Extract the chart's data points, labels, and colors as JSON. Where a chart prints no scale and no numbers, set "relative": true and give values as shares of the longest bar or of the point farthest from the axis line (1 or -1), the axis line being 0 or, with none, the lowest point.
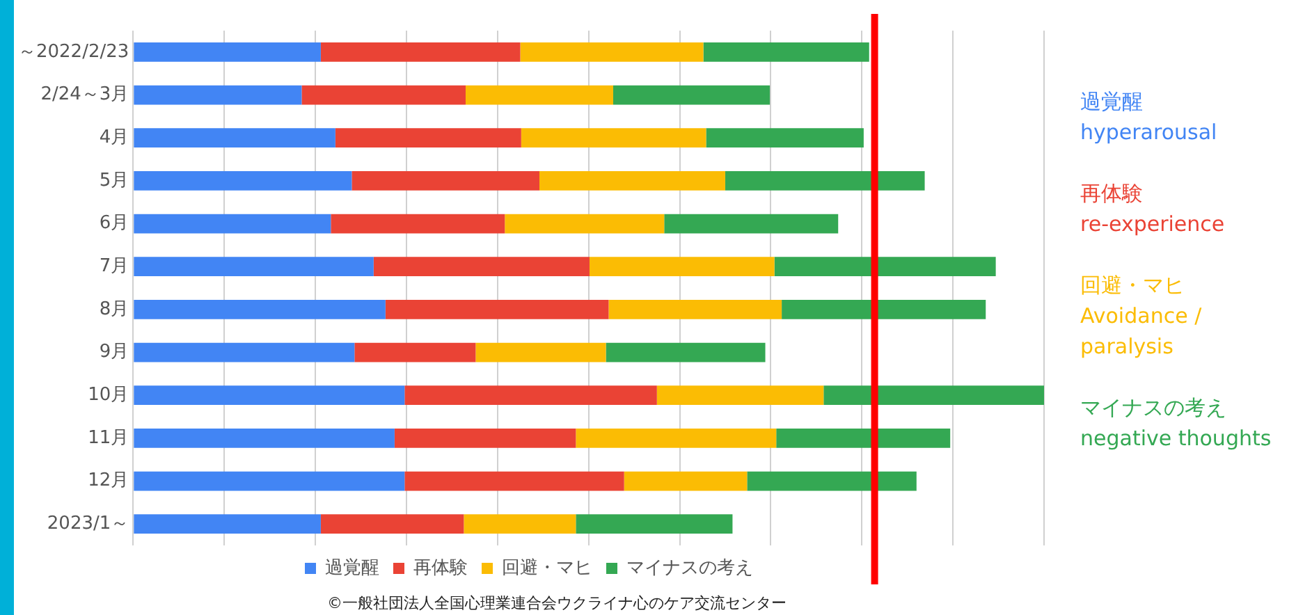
{
  "chart_data": {
    "type": "bar",
    "orientation": "horizontal",
    "stacked": true,
    "relative": true,
    "grid": "x",
    "legend": "bottom",
    "categories": [
      "～2022/2/23",
      "2/24～3月",
      "4月",
      "5月",
      "6月",
      "7月",
      "8月",
      "9月",
      "10月",
      "11月",
      "12月",
      "2023/1～"
    ],
    "series": [
      {
        "name": "過覚醒",
        "color": "#4285f4",
        "values": [
          0.206,
          0.185,
          0.222,
          0.24,
          0.217,
          0.264,
          0.277,
          0.243,
          0.298,
          0.287,
          0.298,
          0.206
        ]
      },
      {
        "name": "再体験",
        "color": "#ea4335",
        "values": [
          0.219,
          0.18,
          0.204,
          0.206,
          0.191,
          0.237,
          0.245,
          0.133,
          0.277,
          0.199,
          0.241,
          0.157
        ]
      },
      {
        "name": "回避・マヒ",
        "color": "#fbbc04",
        "values": [
          0.201,
          0.162,
          0.203,
          0.204,
          0.175,
          0.203,
          0.19,
          0.143,
          0.183,
          0.22,
          0.135,
          0.123
        ]
      },
      {
        "name": "マイナスの考え",
        "color": "#34a853",
        "values": [
          0.182,
          0.172,
          0.173,
          0.219,
          0.191,
          0.243,
          0.224,
          0.175,
          0.242,
          0.191,
          0.186,
          0.172
        ]
      }
    ],
    "ref_lines": [
      {
        "axis": "x",
        "value": 0.814,
        "color": "#ff0000"
      }
    ],
    "annotations": [
      "過覚醒\nhyperarousal",
      "再体験\nre-experience",
      "回避・マヒ\nAvoidance /\nparalysis",
      "マイナスの考え\nnegative thoughts",
      "©一般社団法人全国心理業連合会ウクライナ心のケア交流センター"
    ]
  }
}
